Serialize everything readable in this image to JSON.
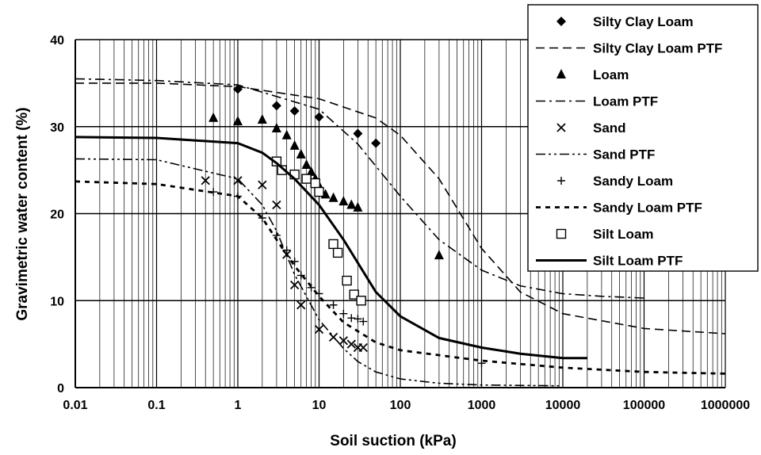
{
  "chart_data": {
    "type": "scatter",
    "title": "",
    "xlabel": "Soil suction (kPa)",
    "ylabel": "Gravimetric water content (%)",
    "x_scale": "log",
    "xlim": [
      0.01,
      1000000
    ],
    "ylim": [
      0,
      40
    ],
    "grid": true,
    "legend_position": "top-right",
    "x_tick_labels": [
      "0.01",
      "0.1",
      "1",
      "10",
      "100",
      "1000",
      "10000",
      "100000",
      "1000000"
    ],
    "y_tick_labels": [
      "0",
      "10",
      "20",
      "30",
      "40"
    ],
    "series": [
      {
        "name": "Silty Clay Loam",
        "kind": "points",
        "marker": "diamond",
        "x": [
          1,
          3,
          5,
          10,
          30,
          50
        ],
        "y": [
          34.3,
          32.4,
          31.8,
          31.1,
          29.2,
          28.1
        ]
      },
      {
        "name": "Silty Clay Loam PTF",
        "kind": "line",
        "dash": "dashed",
        "x": [
          0.01,
          0.1,
          1,
          10,
          50,
          100,
          300,
          1000,
          3000,
          10000,
          100000,
          1000000
        ],
        "y": [
          35,
          35,
          34.6,
          33.2,
          31,
          29,
          24,
          16,
          11,
          8.5,
          6.8,
          6.2
        ]
      },
      {
        "name": "Loam",
        "kind": "points",
        "marker": "triangle",
        "x": [
          0.5,
          1,
          2,
          3,
          4,
          5,
          6,
          7,
          8,
          9,
          10,
          12,
          15,
          20,
          25,
          30,
          300
        ],
        "y": [
          31,
          30.6,
          30.8,
          29.8,
          29,
          27.8,
          26.8,
          25.6,
          24.8,
          24,
          23.2,
          22.2,
          21.8,
          21.4,
          21,
          20.7,
          15.2
        ]
      },
      {
        "name": "Loam PTF",
        "kind": "line",
        "dash": "dashdot",
        "x": [
          0.01,
          0.1,
          1,
          10,
          30,
          100,
          300,
          1000,
          3000,
          10000,
          30000,
          100000
        ],
        "y": [
          35.5,
          35.3,
          34.8,
          32,
          28,
          22,
          17,
          13.5,
          11.7,
          10.8,
          10.5,
          10.3
        ]
      },
      {
        "name": "Sand",
        "kind": "points",
        "marker": "x",
        "x": [
          0.4,
          1,
          2,
          3,
          4,
          5,
          6,
          10,
          15,
          20,
          25,
          30,
          35
        ],
        "y": [
          23.8,
          23.8,
          23.3,
          21,
          15.3,
          11.8,
          9.5,
          6.7,
          5.8,
          5.4,
          5,
          4.6,
          4.6
        ]
      },
      {
        "name": "Sand PTF",
        "kind": "line",
        "dash": "dashdotdot",
        "x": [
          0.01,
          0.1,
          1,
          2,
          3,
          5,
          10,
          20,
          30,
          50,
          100,
          300,
          1000,
          10000
        ],
        "y": [
          26.3,
          26.2,
          24,
          21,
          18,
          13,
          7.8,
          4.5,
          3,
          1.8,
          1,
          0.5,
          0.3,
          0.2
        ]
      },
      {
        "name": "Sandy Loam",
        "kind": "points",
        "marker": "plus",
        "x": [
          0.5,
          1,
          2,
          3,
          4,
          5,
          6,
          8,
          10,
          15,
          20,
          25,
          30,
          35,
          1000
        ],
        "y": [
          22.5,
          22,
          19.5,
          17.5,
          15.8,
          14.5,
          12.9,
          11.5,
          10.8,
          9.5,
          8.5,
          8,
          7.9,
          7.6,
          2.8
        ]
      },
      {
        "name": "Sandy Loam PTF",
        "kind": "line",
        "dash": "shortdash",
        "x": [
          0.01,
          0.1,
          1,
          2,
          3,
          5,
          10,
          20,
          50,
          100,
          1000,
          10000,
          100000,
          1000000
        ],
        "y": [
          23.7,
          23.4,
          22,
          19.5,
          17,
          14,
          10.5,
          7.5,
          5.2,
          4.3,
          3.1,
          2.3,
          1.8,
          1.6
        ]
      },
      {
        "name": "Silt Loam",
        "kind": "points",
        "marker": "square",
        "x": [
          3,
          3.5,
          5,
          7,
          9,
          10,
          15,
          17,
          22,
          27,
          33
        ],
        "y": [
          26,
          25,
          24.5,
          24,
          23.5,
          22.5,
          16.5,
          15.5,
          12.3,
          10.7,
          10
        ]
      },
      {
        "name": "Silt Loam PTF",
        "kind": "line",
        "dash": "solid",
        "x": [
          0.01,
          0.1,
          1,
          2,
          3,
          5,
          10,
          20,
          50,
          100,
          300,
          1000,
          3000,
          10000,
          20000
        ],
        "y": [
          28.8,
          28.7,
          28.1,
          27,
          25.8,
          24,
          21,
          17,
          11,
          8.2,
          5.7,
          4.6,
          3.9,
          3.4,
          3.4
        ]
      }
    ]
  }
}
